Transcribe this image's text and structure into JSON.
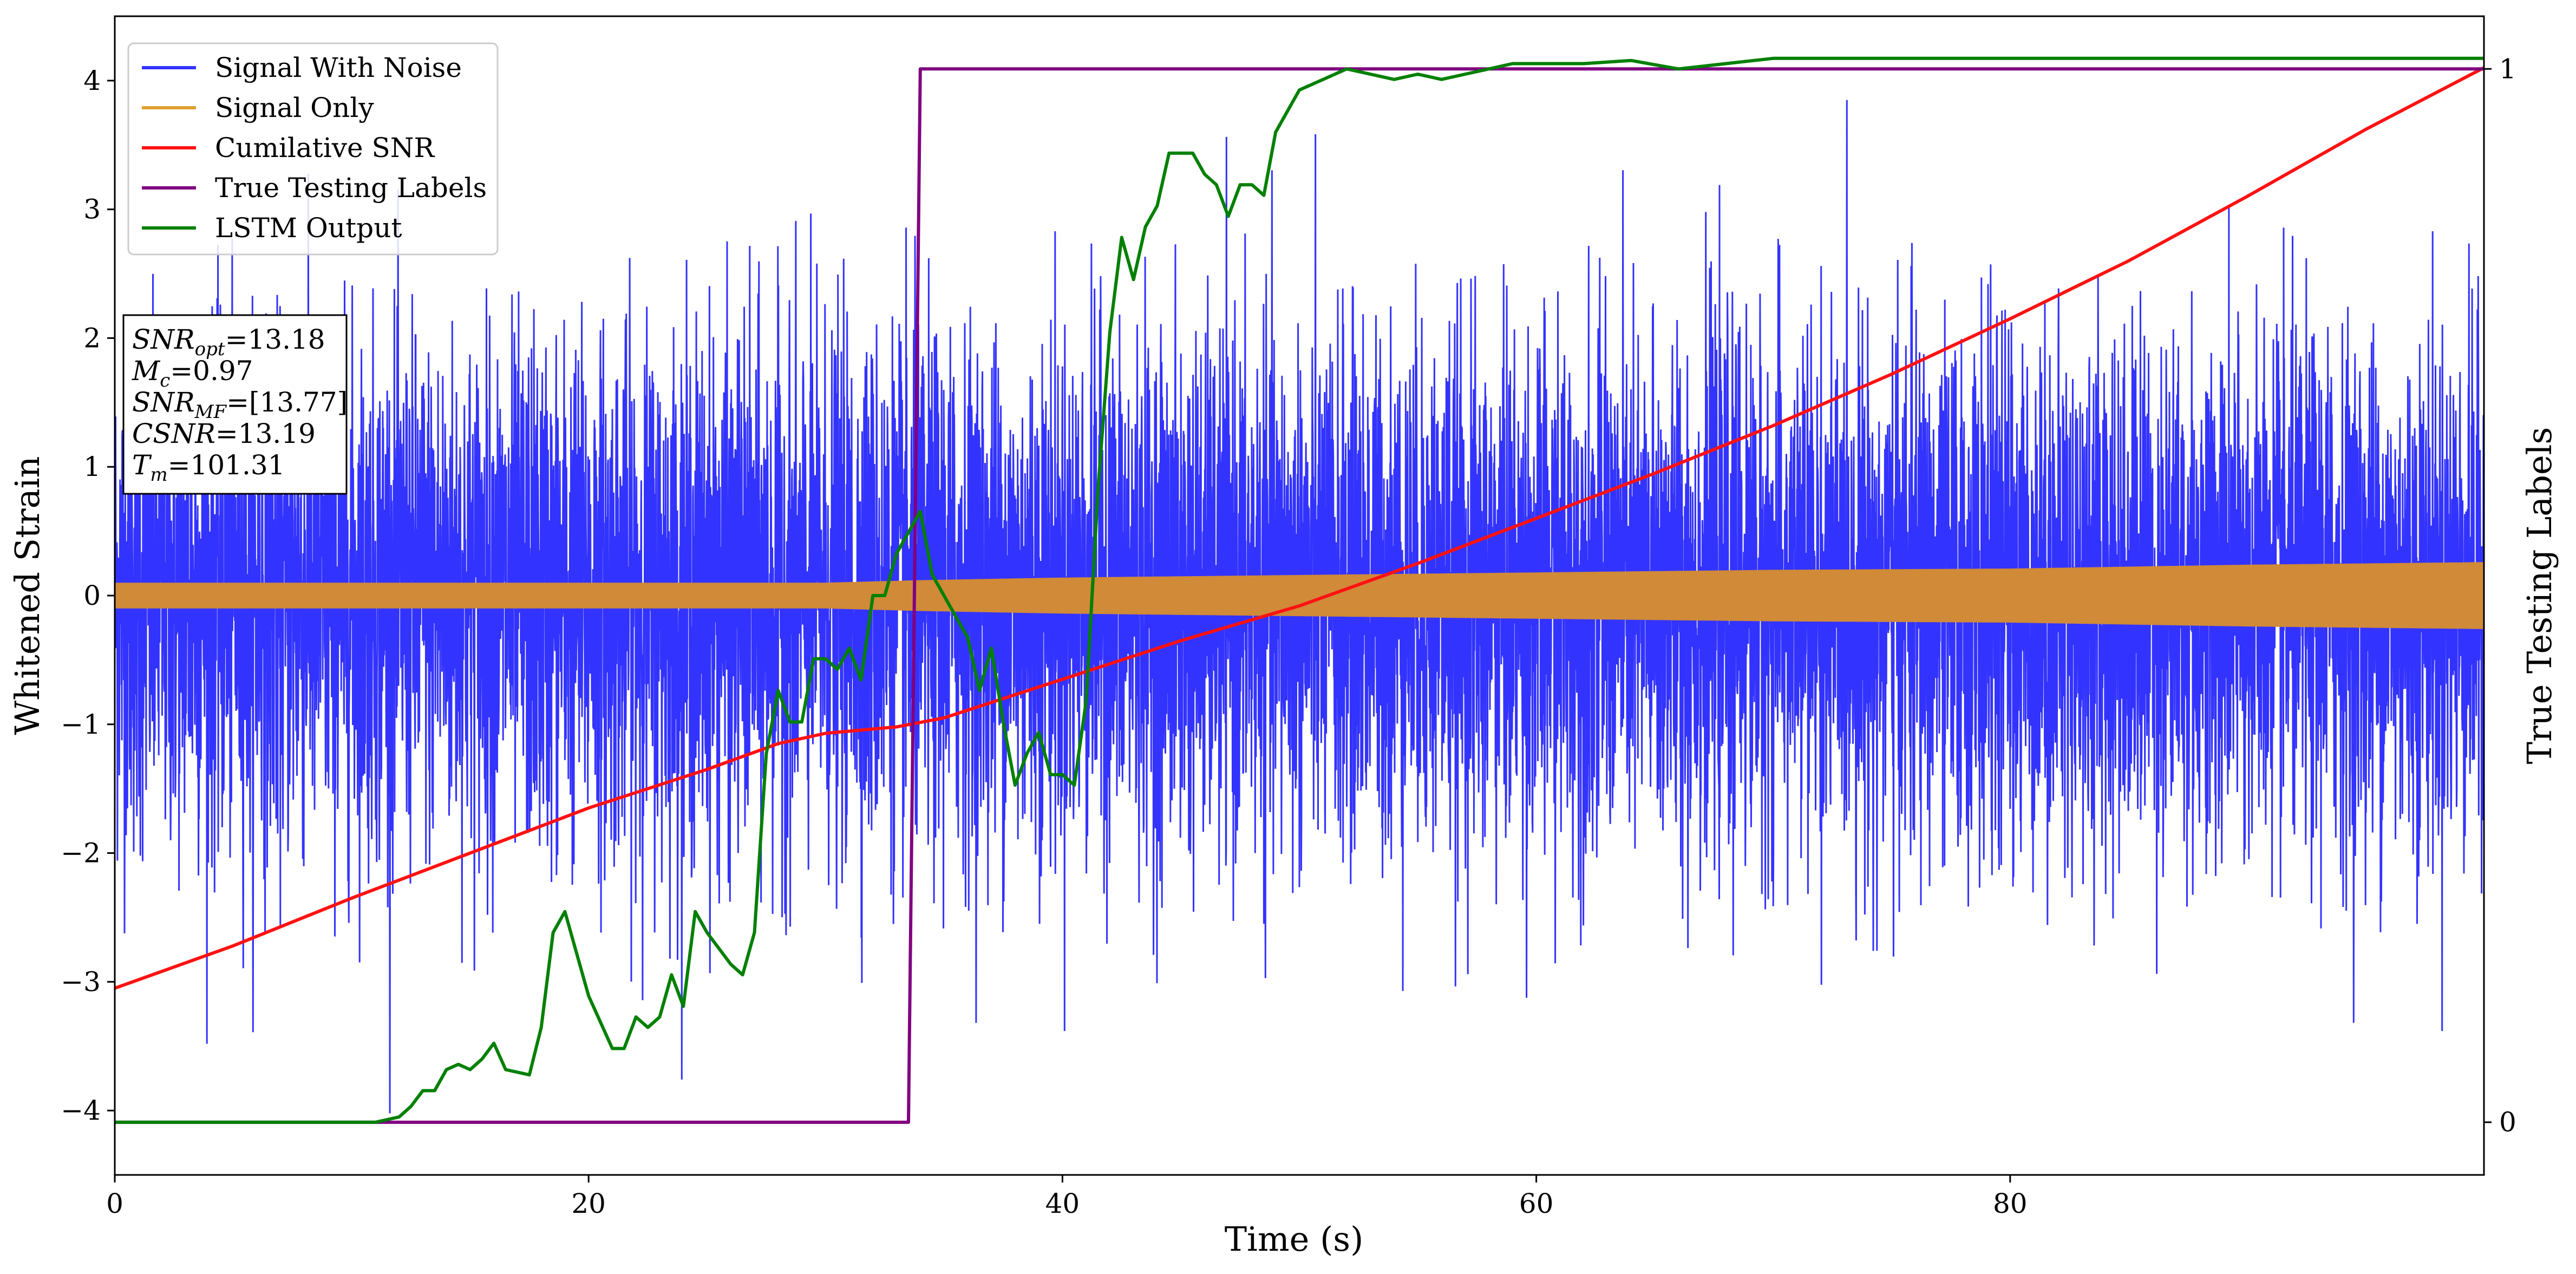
{
  "chart_data": {
    "type": "line",
    "title": "",
    "xlabel": "Time (s)",
    "ylabel": "Whitened Strain",
    "y2label": "True Testing Labels",
    "xlim": [
      0,
      100
    ],
    "ylim": [
      -4.5,
      4.5
    ],
    "y2lim": [
      -0.05,
      1.05
    ],
    "x_ticks": [
      0,
      20,
      40,
      60,
      80
    ],
    "y_ticks": [
      -4,
      -3,
      -2,
      -1,
      0,
      1,
      2,
      3,
      4
    ],
    "y2_ticks": [
      0,
      1
    ],
    "grid": false,
    "legend_position": "top-left",
    "colors": {
      "signal_with_noise": "#3333ff",
      "signal_only": "#e0a030",
      "signal_only_fill": "#d08a38",
      "cumulative_snr": "#ff1111",
      "true_testing_labels": "#800080",
      "lstm_output": "#008000"
    },
    "legend": [
      {
        "key": "signal_with_noise",
        "label": "Signal With Noise"
      },
      {
        "key": "signal_only",
        "label": "Signal Only"
      },
      {
        "key": "cumulative_snr",
        "label": "Cumilative SNR"
      },
      {
        "key": "true_testing_labels",
        "label": "True Testing Labels"
      },
      {
        "key": "lstm_output",
        "label": "LSTM Output"
      }
    ],
    "info_box": [
      {
        "name": "SNR",
        "sub": "opt",
        "value": "=13.18"
      },
      {
        "name": "M",
        "sub": "c",
        "value": "=0.97"
      },
      {
        "name": "SNR",
        "sub": "MF",
        "value": "=[13.77]"
      },
      {
        "name": "CSNR",
        "sub": "",
        "value": "=13.19"
      },
      {
        "name": "T",
        "sub": "m",
        "value": "=101.31"
      }
    ],
    "series": {
      "signal_with_noise": {
        "axis": "left",
        "description_values": {
          "mean": 0,
          "approx_std": 1.0,
          "min": -4.1,
          "max": 3.85
        }
      },
      "signal_only": {
        "axis": "left",
        "envelope": {
          "x": [
            0,
            10,
            20,
            30,
            34,
            40,
            50,
            60,
            70,
            80,
            90,
            100
          ],
          "amp": [
            0.1,
            0.1,
            0.1,
            0.1,
            0.12,
            0.14,
            0.16,
            0.18,
            0.2,
            0.21,
            0.24,
            0.26
          ]
        }
      },
      "cumulative_snr": {
        "axis": "left",
        "x": [
          0,
          5,
          10,
          15,
          20,
          25,
          28,
          30,
          33,
          35,
          40,
          45,
          50,
          55,
          60,
          65,
          70,
          75,
          80,
          85,
          90,
          95,
          100
        ],
        "y": [
          -3.05,
          -2.72,
          -2.35,
          -2.0,
          -1.65,
          -1.35,
          -1.15,
          -1.07,
          -1.02,
          -0.95,
          -0.65,
          -0.35,
          -0.08,
          0.25,
          0.6,
          0.95,
          1.32,
          1.72,
          2.15,
          2.6,
          3.1,
          3.62,
          4.1
        ]
      },
      "true_testing_labels": {
        "axis": "right",
        "x": [
          0,
          33.5,
          34.0,
          100
        ],
        "y": [
          0,
          0,
          1,
          1
        ]
      },
      "lstm_output": {
        "axis": "right",
        "x": [
          0,
          11,
          12,
          12.5,
          13,
          13.5,
          14,
          14.5,
          15,
          15.5,
          16,
          16.5,
          17.5,
          18,
          18.5,
          19,
          19.5,
          20,
          21,
          21.5,
          22,
          22.5,
          23,
          23.5,
          24,
          24.5,
          25,
          26,
          26.5,
          27,
          27.5,
          28,
          28.5,
          29,
          29.5,
          30,
          30.5,
          31,
          31.5,
          32,
          32.5,
          33,
          33.5,
          34,
          34.5,
          35,
          36,
          36.5,
          37,
          37.5,
          38,
          38.5,
          39,
          39.5,
          40,
          40.5,
          41,
          41.5,
          42,
          42.5,
          43,
          43.5,
          44,
          44.5,
          45,
          45.5,
          46,
          46.5,
          47,
          47.5,
          48,
          48.5,
          49,
          49.5,
          50,
          51,
          52,
          53,
          54,
          55,
          56,
          57,
          58,
          59,
          60,
          62,
          64,
          66,
          68,
          70,
          72,
          75,
          80,
          90,
          100
        ],
        "y": [
          0,
          0,
          0.005,
          0.015,
          0.03,
          0.03,
          0.05,
          0.055,
          0.05,
          0.06,
          0.075,
          0.05,
          0.045,
          0.09,
          0.18,
          0.2,
          0.16,
          0.12,
          0.07,
          0.07,
          0.1,
          0.09,
          0.1,
          0.14,
          0.11,
          0.2,
          0.18,
          0.15,
          0.14,
          0.18,
          0.35,
          0.41,
          0.38,
          0.38,
          0.44,
          0.44,
          0.43,
          0.45,
          0.42,
          0.5,
          0.5,
          0.54,
          0.56,
          0.58,
          0.52,
          0.5,
          0.46,
          0.41,
          0.45,
          0.38,
          0.32,
          0.35,
          0.37,
          0.33,
          0.33,
          0.32,
          0.4,
          0.6,
          0.75,
          0.84,
          0.8,
          0.85,
          0.87,
          0.92,
          0.92,
          0.92,
          0.9,
          0.89,
          0.86,
          0.89,
          0.89,
          0.88,
          0.94,
          0.96,
          0.98,
          0.99,
          1.0,
          0.995,
          0.99,
          0.995,
          0.99,
          0.995,
          1.0,
          1.005,
          1.005,
          1.005,
          1.008,
          1.0,
          1.005,
          1.01,
          1.01,
          1.01,
          1.01,
          1.01,
          1.01
        ]
      }
    }
  }
}
